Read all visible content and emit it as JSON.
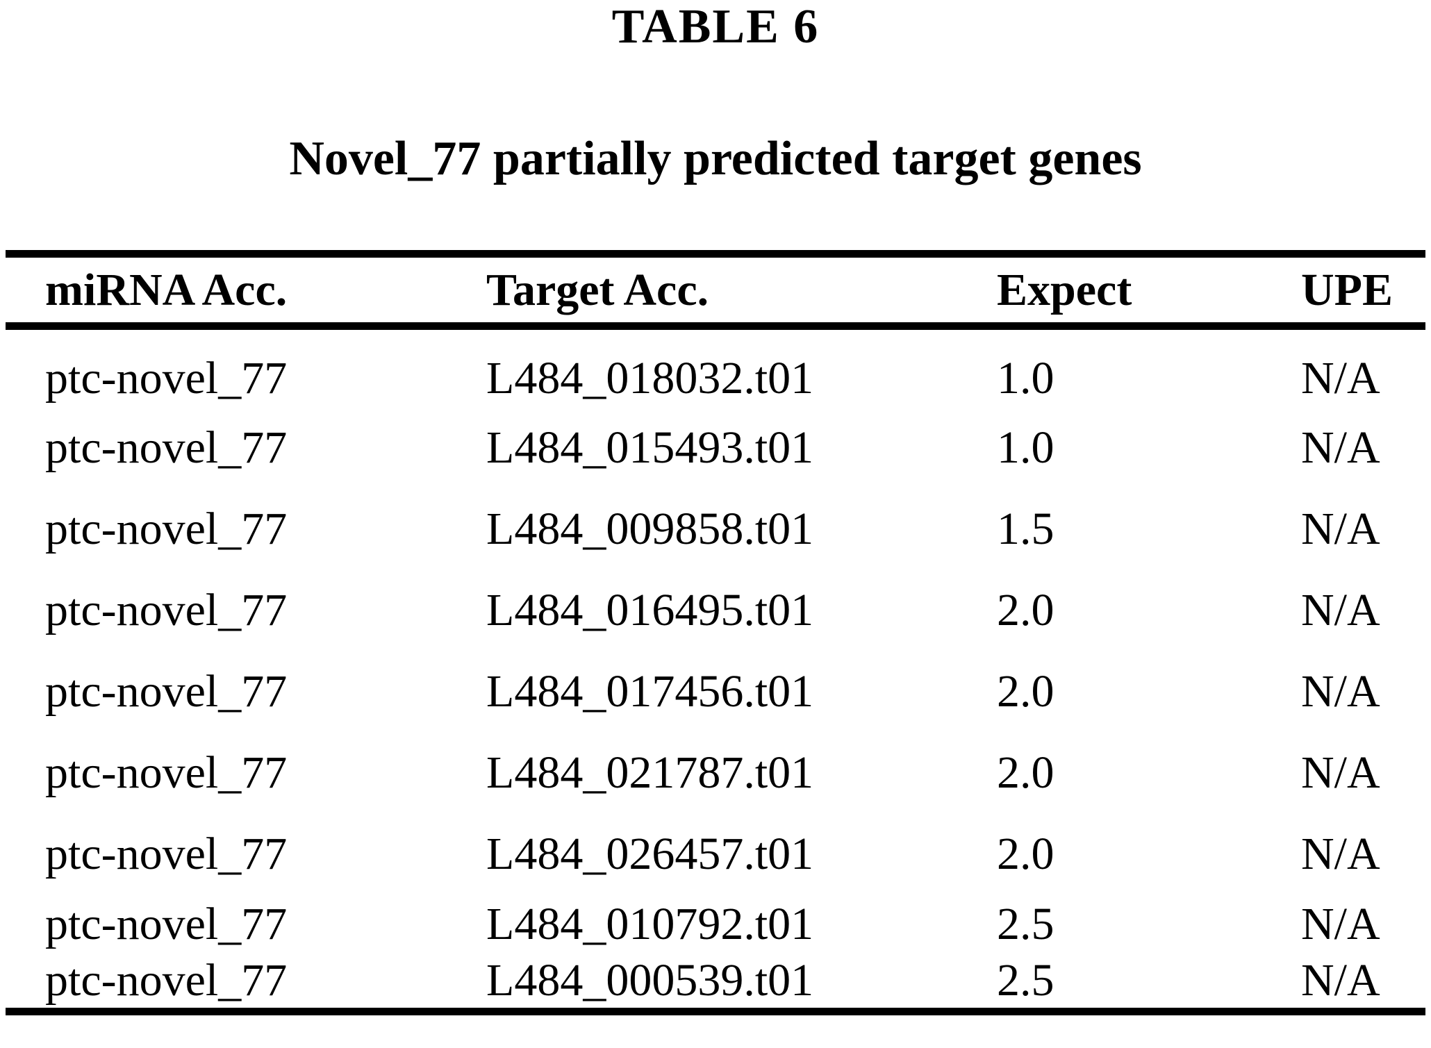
{
  "document": {
    "table_label": "TABLE 6",
    "table_title": "Novel_77 partially predicted target genes"
  },
  "table": {
    "columns": [
      "miRNA Acc.",
      "Target Acc.",
      "Expect",
      "UPE"
    ],
    "rows": [
      [
        "ptc-novel_77",
        "L484_018032.t01",
        "1.0",
        "N/A"
      ],
      [
        "ptc-novel_77",
        "L484_015493.t01",
        "1.0",
        "N/A"
      ],
      [
        "ptc-novel_77",
        "L484_009858.t01",
        "1.5",
        "N/A"
      ],
      [
        "ptc-novel_77",
        "L484_016495.t01",
        "2.0",
        "N/A"
      ],
      [
        "ptc-novel_77",
        "L484_017456.t01",
        "2.0",
        "N/A"
      ],
      [
        "ptc-novel_77",
        "L484_021787.t01",
        "2.0",
        "N/A"
      ],
      [
        "ptc-novel_77",
        "L484_026457.t01",
        "2.0",
        "N/A"
      ],
      [
        "ptc-novel_77",
        "L484_010792.t01",
        "2.5",
        "N/A"
      ],
      [
        "ptc-novel_77",
        "L484_000539.t01",
        "2.5",
        "N/A"
      ]
    ]
  },
  "colors": {
    "text": "#000000",
    "background": "#ffffff",
    "rule": "#000000"
  }
}
